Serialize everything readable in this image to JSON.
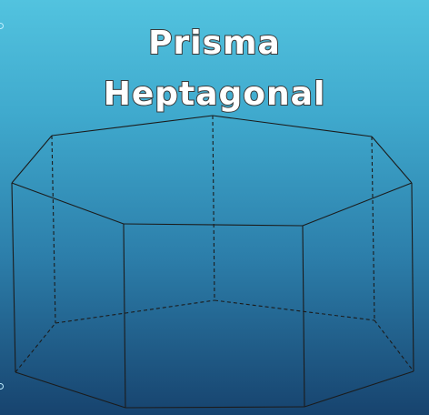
{
  "title": {
    "line1": "Prisma",
    "line2": "Heptagonal"
  }
}
